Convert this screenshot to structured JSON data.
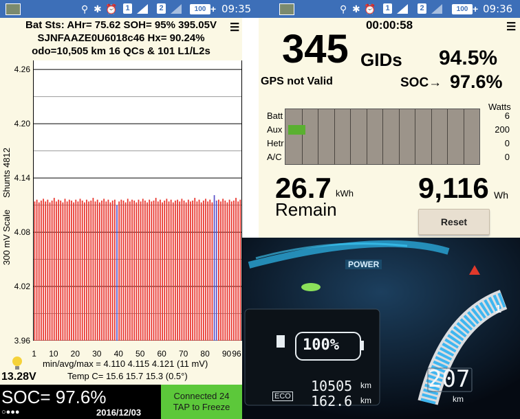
{
  "left_status": {
    "sim1": "1",
    "sim2": "2",
    "battery": "100",
    "time": "09:35"
  },
  "right_status": {
    "sim1": "1",
    "sim2": "2",
    "battery": "100",
    "time": "09:36"
  },
  "left": {
    "header1": "Bat Sts: AHr= 75.62 SOH= 95% 395.05V",
    "header2": "SJNFAAZE0U6018c46   Hx= 90.24%",
    "header3": "odo=10,505 km 16 QCs & 101 L1/L2s",
    "menu": "☰",
    "ylabel_left": "300 mV Scale",
    "ylabel_right": "Shunts 4812",
    "stats1": "min/avg/max = 4.110  4.115  4.121  (11 mV)",
    "stats2": "Temp C= 15.6  15.7  15.3  (0.5°)",
    "aux_voltage": "13.28V",
    "soc": "SOC= 97.6%",
    "dots": "○●●●",
    "date": "2016/12/03",
    "connected": "Connected 24",
    "tap": "TAP to Freeze"
  },
  "chart_data": {
    "type": "bar",
    "ylim": [
      3.96,
      4.27
    ],
    "yticks": [
      "4.26",
      "4.20",
      "4.14",
      "4.08",
      "4.02",
      "3.96"
    ],
    "xticks": [
      "1",
      "10",
      "20",
      "30",
      "40",
      "50",
      "60",
      "70",
      "80",
      "90",
      "96"
    ],
    "series": [
      {
        "values": [
          4.114,
          4.116,
          4.113,
          4.115,
          4.117,
          4.114,
          4.116,
          4.113,
          4.115,
          4.118,
          4.114,
          4.116,
          4.115,
          4.113,
          4.117,
          4.114,
          4.116,
          4.115,
          4.113,
          4.116,
          4.114,
          4.117,
          4.115,
          4.113,
          4.116,
          4.114,
          4.115,
          4.118,
          4.114,
          4.116,
          4.113,
          4.115,
          4.117,
          4.114,
          4.116,
          4.113,
          4.115,
          4.116,
          4.11,
          4.114,
          4.116,
          4.115,
          4.113,
          4.117,
          4.114,
          4.116,
          4.115,
          4.113,
          4.116,
          4.114,
          4.117,
          4.115,
          4.113,
          4.116,
          4.114,
          4.115,
          4.118,
          4.114,
          4.116,
          4.113,
          4.115,
          4.117,
          4.114,
          4.116,
          4.113,
          4.115,
          4.116,
          4.114,
          4.117,
          4.115,
          4.113,
          4.116,
          4.114,
          4.115,
          4.118,
          4.114,
          4.116,
          4.113,
          4.115,
          4.117,
          4.114,
          4.116,
          4.113,
          4.121,
          4.115,
          4.116,
          4.114,
          4.117,
          4.115,
          4.113,
          4.116,
          4.114,
          4.115,
          4.118,
          4.114,
          4.116
        ]
      }
    ],
    "highlight_cells": [
      39,
      84,
      85
    ],
    "bar_color": "#e8322a",
    "highlight_color": "#5a50c8"
  },
  "right": {
    "timer": "00:00:58",
    "menu": "☰",
    "gids": "345",
    "gids_unit": "GIDs",
    "percent": "94.5%",
    "gps": "GPS not Valid",
    "soc_label": "SOC→",
    "soc_value": "97.6%",
    "watts_header": "Watts",
    "rows": [
      {
        "label": "Batt",
        "value": "6",
        "fill": 0
      },
      {
        "label": "Aux",
        "value": "200",
        "fill": 0.09
      },
      {
        "label": "Hetr",
        "value": "0",
        "fill": 0
      },
      {
        "label": "A/C",
        "value": "0",
        "fill": 0
      }
    ],
    "kwh_value": "26.7",
    "kwh_unit": "kWh",
    "remain": "Remain",
    "wh_value": "9,116",
    "wh_unit": "Wh",
    "reset": "Reset"
  },
  "dashboard": {
    "power": "POWER",
    "battery_percent": "100%",
    "odo": "10505",
    "odo_unit": "km",
    "trip": "162.6",
    "trip_unit": "km",
    "range": "207",
    "range_unit": "km",
    "eco": "ECO",
    "gauge_mark": "1"
  }
}
